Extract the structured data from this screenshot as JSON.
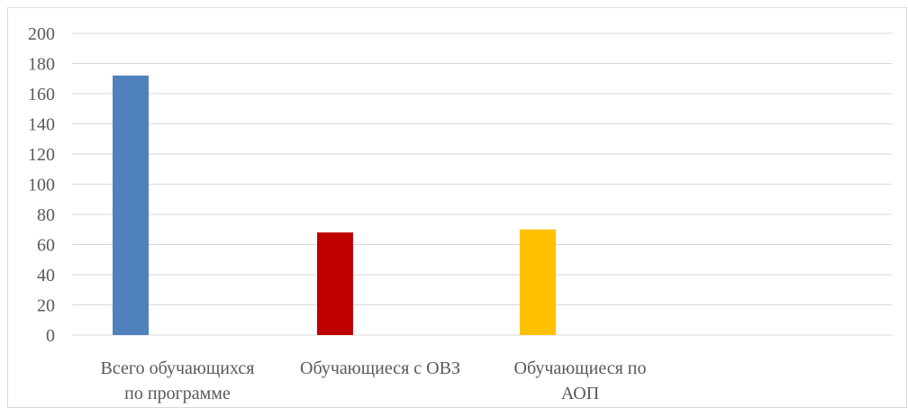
{
  "chart_data": {
    "type": "bar",
    "categories": [
      [
        "Всего обучающихся",
        "по программе"
      ],
      [
        "Обучающиеся с ОВЗ"
      ],
      [
        "Обучающиеся по",
        "АОП"
      ]
    ],
    "values": [
      172,
      68,
      70
    ],
    "colors": [
      "#4f81bd",
      "#c00000",
      "#ffc000"
    ],
    "yticks": [
      "0",
      "20",
      "40",
      "60",
      "80",
      "100",
      "120",
      "140",
      "160",
      "180",
      "200"
    ],
    "ylim": [
      0,
      200
    ],
    "grid": true
  }
}
